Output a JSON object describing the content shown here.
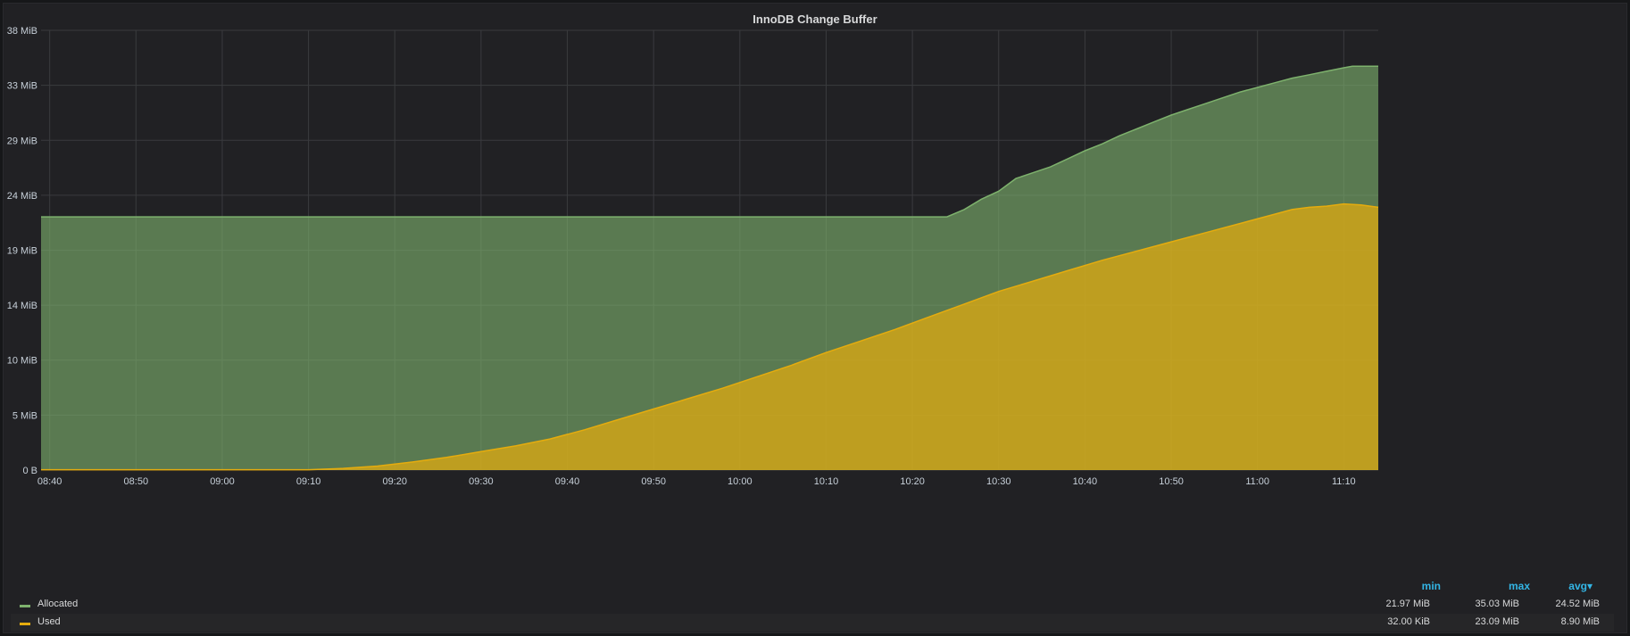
{
  "chart_data": {
    "type": "area",
    "title": "InnoDB Change Buffer",
    "stacked": false,
    "y_ticks": [
      "0 B",
      "5 MiB",
      "10 MiB",
      "14 MiB",
      "19 MiB",
      "24 MiB",
      "29 MiB",
      "33 MiB",
      "38 MiB"
    ],
    "y_tick_values": [
      0,
      4.77,
      9.54,
      14.31,
      19.07,
      23.84,
      28.61,
      33.38,
      38.15
    ],
    "ylim": [
      0,
      38.15
    ],
    "y_unit": "MiB",
    "x_ticks": [
      "08:40",
      "08:50",
      "09:00",
      "09:10",
      "09:20",
      "09:30",
      "09:40",
      "09:50",
      "10:00",
      "10:10",
      "10:20",
      "10:30",
      "10:40",
      "10:50",
      "11:00",
      "11:10"
    ],
    "x_tick_minutes": [
      520,
      530,
      540,
      550,
      560,
      570,
      580,
      590,
      600,
      610,
      620,
      630,
      640,
      650,
      660,
      670
    ],
    "xlim_minutes": [
      519,
      674
    ],
    "grid": true,
    "legend_placement": "bottom",
    "series": [
      {
        "name": "Allocated",
        "color": "#7eb26d",
        "points": [
          [
            519,
            21.97
          ],
          [
            624,
            21.97
          ],
          [
            626,
            22.6
          ],
          [
            628,
            23.5
          ],
          [
            630,
            24.2
          ],
          [
            632,
            25.3
          ],
          [
            634,
            25.8
          ],
          [
            636,
            26.3
          ],
          [
            638,
            27.0
          ],
          [
            640,
            27.7
          ],
          [
            642,
            28.3
          ],
          [
            644,
            29.0
          ],
          [
            646,
            29.6
          ],
          [
            648,
            30.2
          ],
          [
            650,
            30.8
          ],
          [
            652,
            31.3
          ],
          [
            654,
            31.8
          ],
          [
            656,
            32.3
          ],
          [
            658,
            32.8
          ],
          [
            660,
            33.2
          ],
          [
            662,
            33.6
          ],
          [
            664,
            34.0
          ],
          [
            666,
            34.3
          ],
          [
            668,
            34.6
          ],
          [
            670,
            34.9
          ],
          [
            671,
            35.03
          ],
          [
            674,
            35.03
          ]
        ]
      },
      {
        "name": "Used",
        "color": "#e5ac0e",
        "points": [
          [
            519,
            0.03
          ],
          [
            550,
            0.03
          ],
          [
            554,
            0.15
          ],
          [
            558,
            0.35
          ],
          [
            562,
            0.7
          ],
          [
            566,
            1.1
          ],
          [
            570,
            1.6
          ],
          [
            574,
            2.1
          ],
          [
            578,
            2.7
          ],
          [
            582,
            3.5
          ],
          [
            586,
            4.4
          ],
          [
            590,
            5.3
          ],
          [
            594,
            6.2
          ],
          [
            598,
            7.1
          ],
          [
            602,
            8.1
          ],
          [
            606,
            9.1
          ],
          [
            610,
            10.2
          ],
          [
            614,
            11.2
          ],
          [
            618,
            12.2
          ],
          [
            622,
            13.3
          ],
          [
            626,
            14.4
          ],
          [
            630,
            15.5
          ],
          [
            634,
            16.4
          ],
          [
            638,
            17.3
          ],
          [
            642,
            18.2
          ],
          [
            646,
            19.0
          ],
          [
            650,
            19.8
          ],
          [
            654,
            20.6
          ],
          [
            658,
            21.4
          ],
          [
            662,
            22.2
          ],
          [
            664,
            22.6
          ],
          [
            666,
            22.8
          ],
          [
            668,
            22.9
          ],
          [
            670,
            23.09
          ],
          [
            672,
            23.0
          ],
          [
            674,
            22.8
          ]
        ]
      }
    ]
  },
  "legend": {
    "headers": {
      "min": "min",
      "max": "max",
      "avg": "avg"
    },
    "sort_indicator": "▾",
    "rows": [
      {
        "name": "Allocated",
        "color": "#7eb26d",
        "min": "21.97 MiB",
        "max": "35.03 MiB",
        "avg": "24.52 MiB"
      },
      {
        "name": "Used",
        "color": "#e5ac0e",
        "min": "32.00 KiB",
        "max": "23.09 MiB",
        "avg": "8.90 MiB"
      }
    ]
  }
}
